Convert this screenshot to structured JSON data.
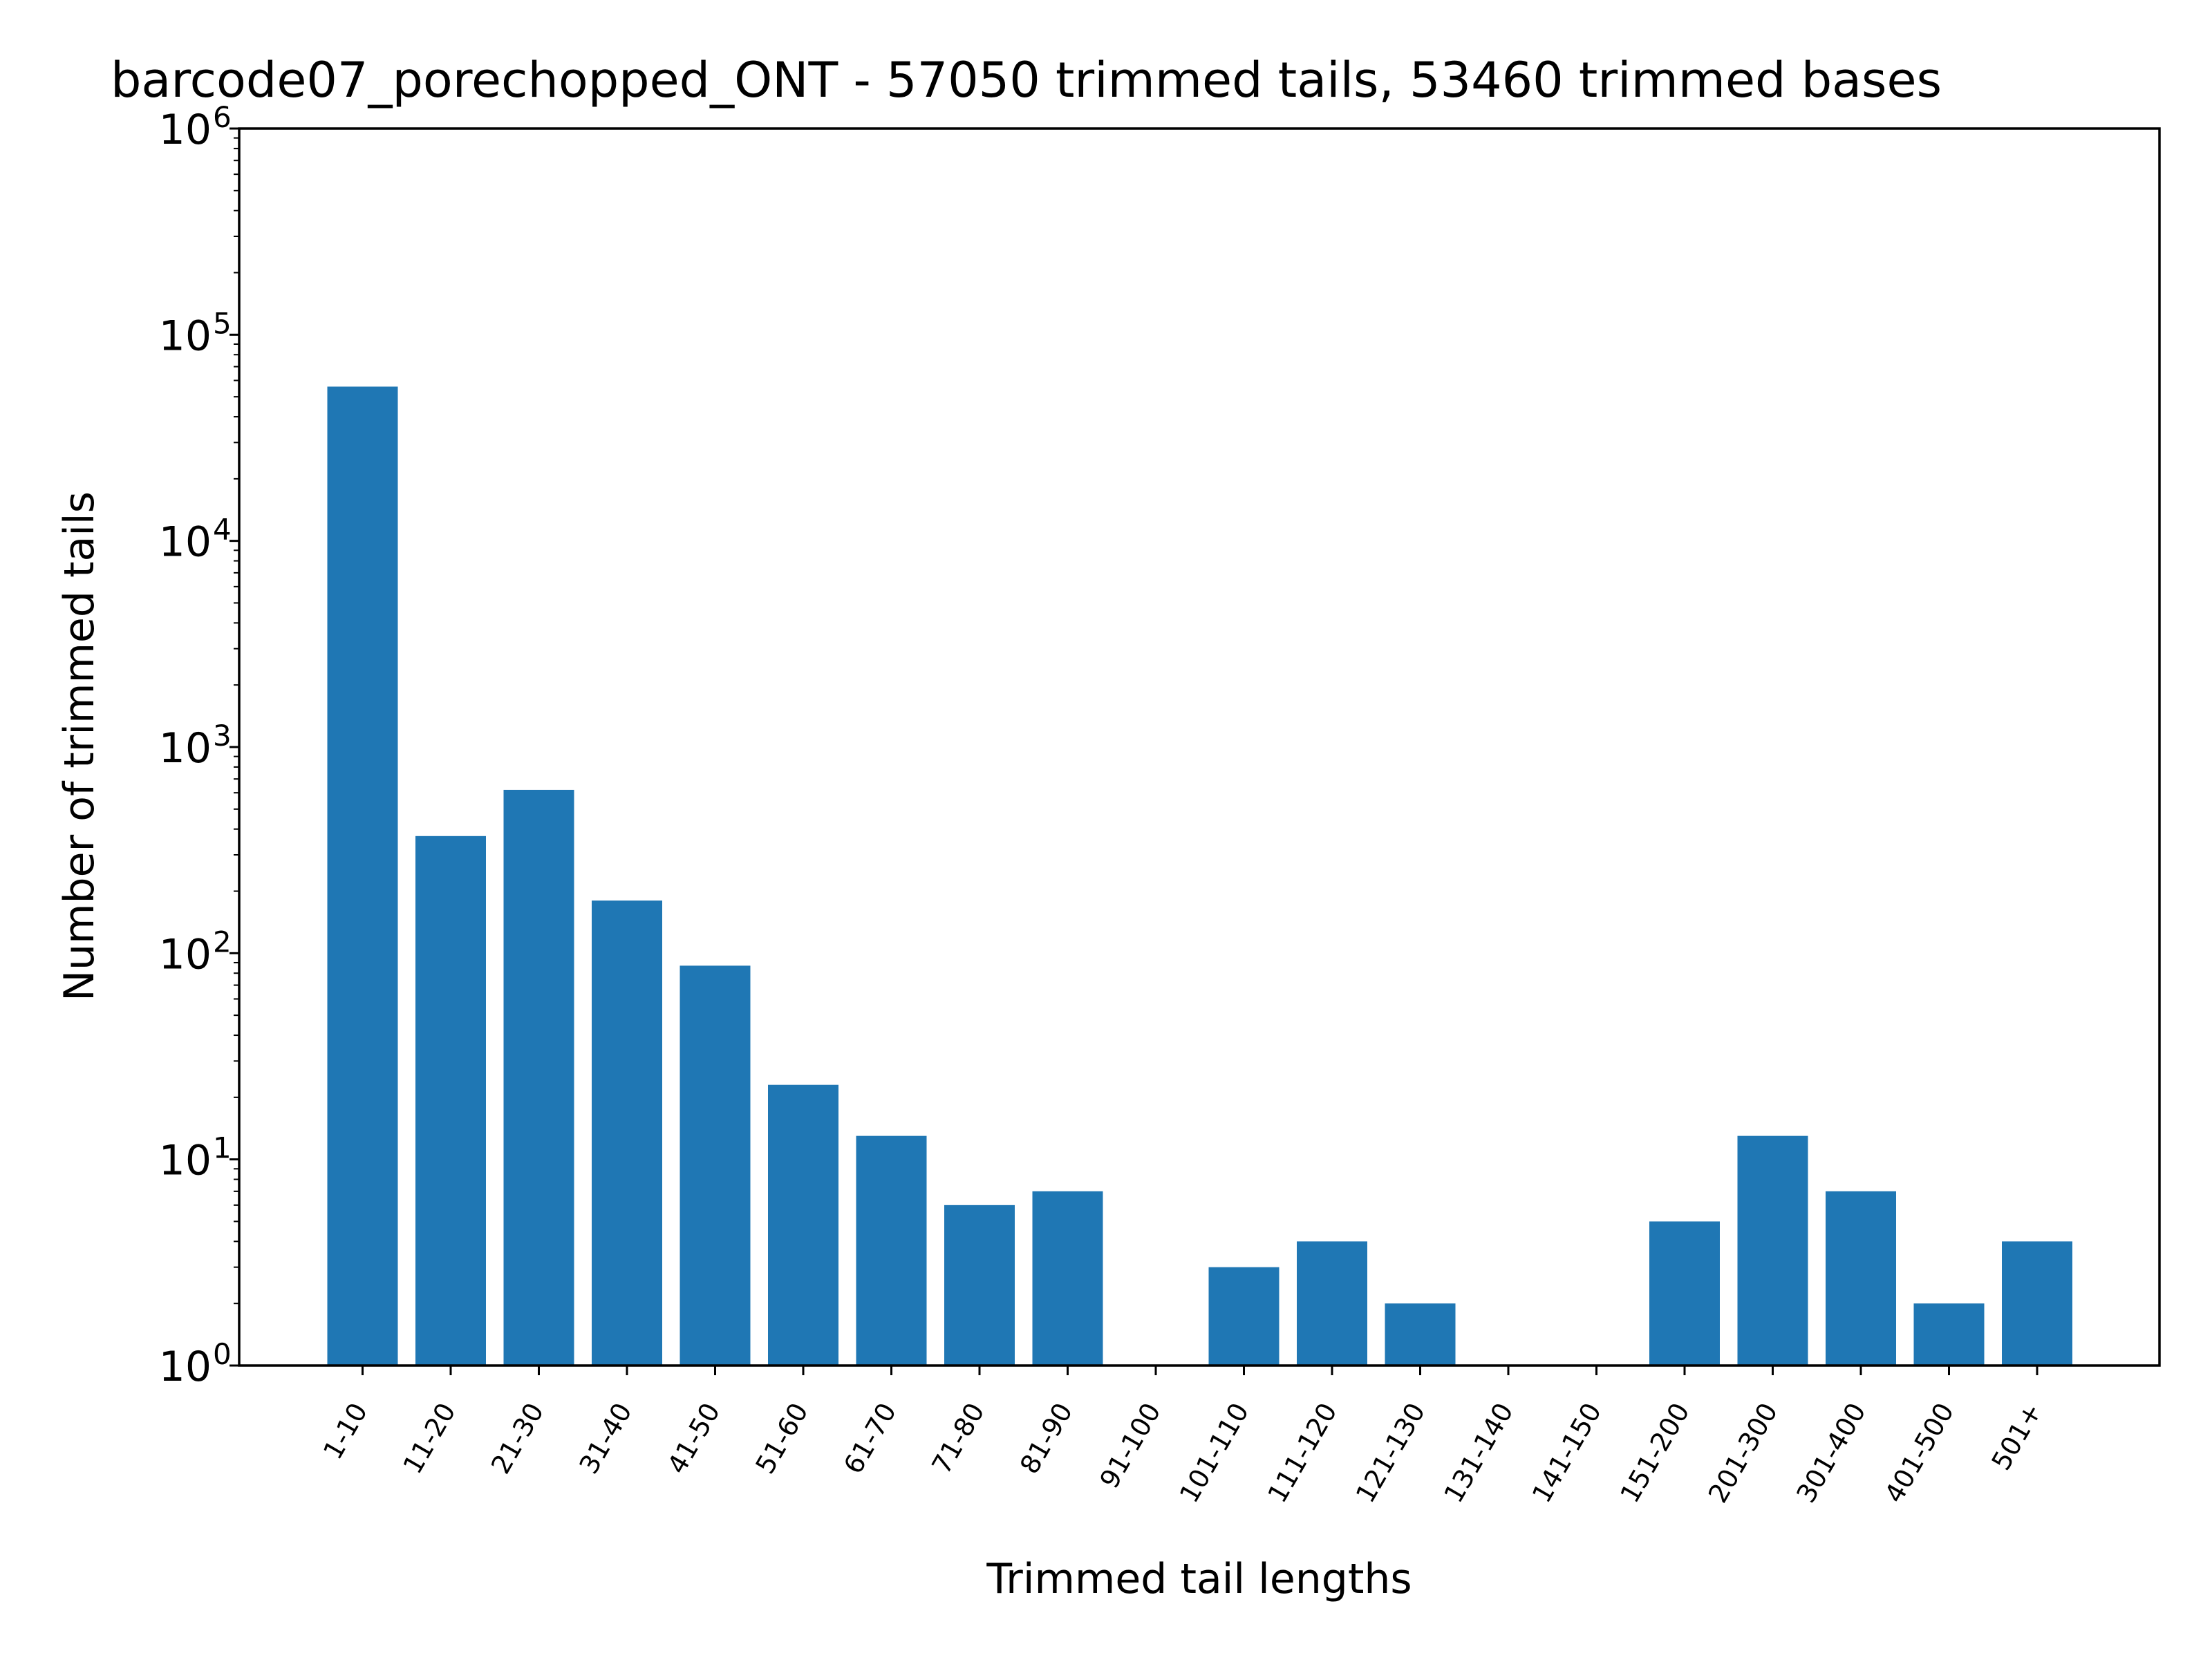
{
  "chart_data": {
    "type": "bar",
    "title": "barcode07_porechopped_ONT - 57050 trimmed tails, 53460 trimmed bases",
    "xlabel": "Trimmed tail lengths",
    "ylabel": "Number of trimmed tails",
    "yscale": "log",
    "ylim": [
      1,
      1000000
    ],
    "yticks": [
      {
        "base": "10",
        "exp": "0"
      },
      {
        "base": "10",
        "exp": "1"
      },
      {
        "base": "10",
        "exp": "2"
      },
      {
        "base": "10",
        "exp": "3"
      },
      {
        "base": "10",
        "exp": "4"
      },
      {
        "base": "10",
        "exp": "5"
      },
      {
        "base": "10",
        "exp": "6"
      }
    ],
    "categories": [
      "1-10",
      "11-20",
      "21-30",
      "31-40",
      "41-50",
      "51-60",
      "61-70",
      "71-80",
      "81-90",
      "91-100",
      "101-110",
      "111-120",
      "121-130",
      "131-140",
      "141-150",
      "151-200",
      "201-300",
      "301-400",
      "401-500",
      "501+"
    ],
    "values": [
      56000,
      370,
      620,
      180,
      87,
      23,
      13,
      6,
      7,
      0,
      3,
      4,
      2,
      0,
      0,
      5,
      13,
      7,
      2,
      4
    ],
    "bar_color": "#1f77b4",
    "grid": false,
    "legend": false
  }
}
